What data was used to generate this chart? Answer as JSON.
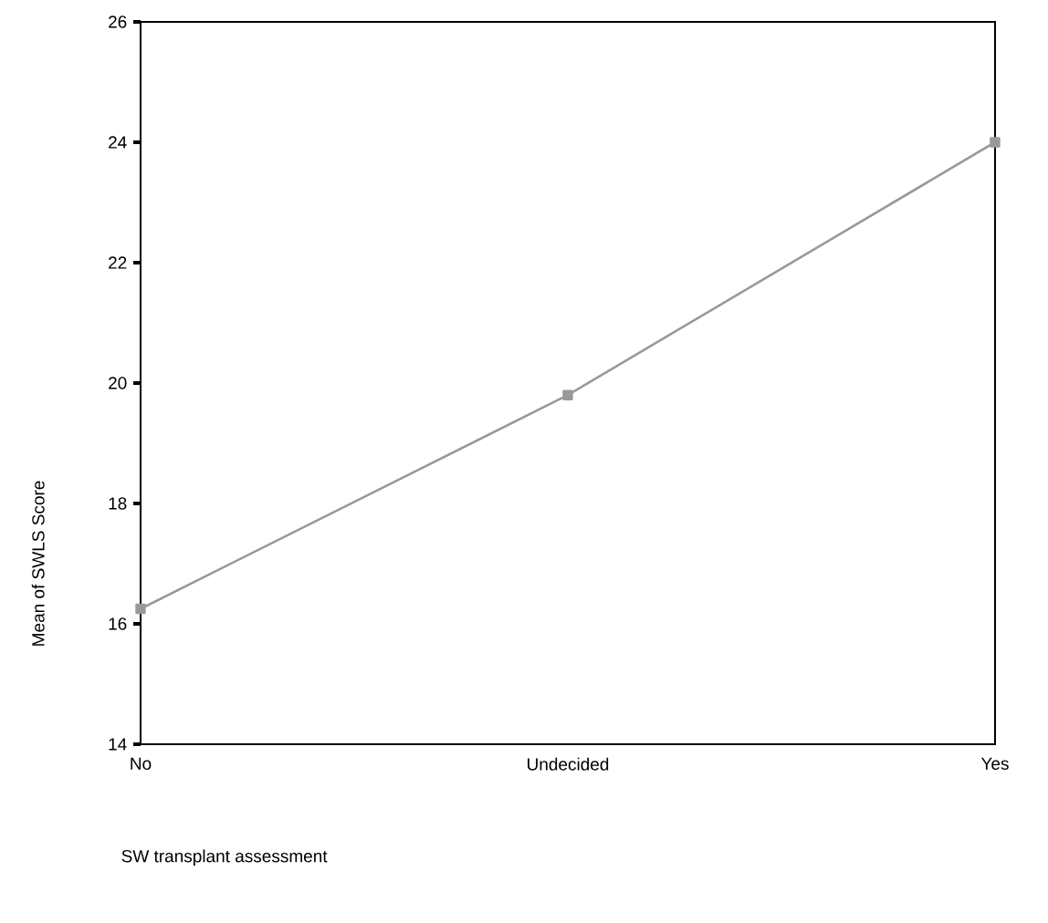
{
  "chart_data": {
    "type": "line",
    "xlabel": "SW transplant assessment",
    "ylabel": "Mean of SWLS Score",
    "categories": [
      "No",
      "Undecided",
      "Yes"
    ],
    "series": [
      {
        "color": "#999999",
        "values": [
          16.25,
          19.8,
          24.0
        ]
      }
    ],
    "ylim": [
      14,
      26
    ],
    "yticks": [
      14,
      16,
      18,
      20,
      22,
      24,
      26
    ],
    "marker": "square",
    "line_style": "solid",
    "grid": false
  }
}
